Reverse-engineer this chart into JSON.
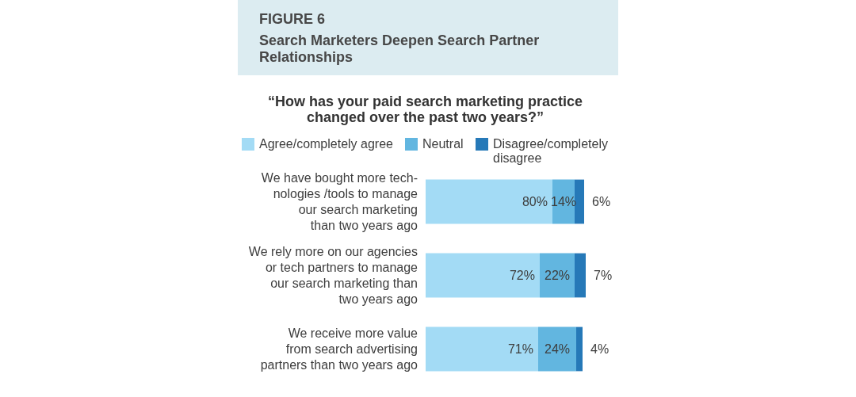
{
  "chart_data": {
    "type": "bar",
    "orientation": "horizontal",
    "stacked": true,
    "title": "FIGURE 6",
    "subtitle": "Search Marketers Deepen Search Partner\nRelationships",
    "annotations": [
      "“How has your paid search marketing practice\nchanged over the past two years?”"
    ],
    "categories": [
      "We have bought more tech-\nnologies /tools to manage\nour search marketing\nthan two years ago",
      "We rely more on our agencies\nor tech partners to manage\nour search marketing than\ntwo years ago",
      "We receive more value\nfrom search advertising\npartners than two years ago"
    ],
    "series": [
      {
        "name": "Agree/completely agree",
        "color": "#a3dbf5",
        "values": [
          80,
          72,
          71
        ],
        "value_labels": [
          "80%",
          "72%",
          "71%"
        ]
      },
      {
        "name": "Neutral",
        "color": "#62b6e0",
        "values": [
          14,
          22,
          24
        ],
        "value_labels": [
          "14%",
          "22%",
          "24%"
        ]
      },
      {
        "name": "Disagree/completely\ndisagree",
        "color": "#2679b8",
        "values": [
          6,
          7,
          4
        ],
        "value_labels": [
          "6%",
          "7%",
          "4%"
        ]
      }
    ],
    "legend": "top",
    "tick_labels": "y"
  }
}
